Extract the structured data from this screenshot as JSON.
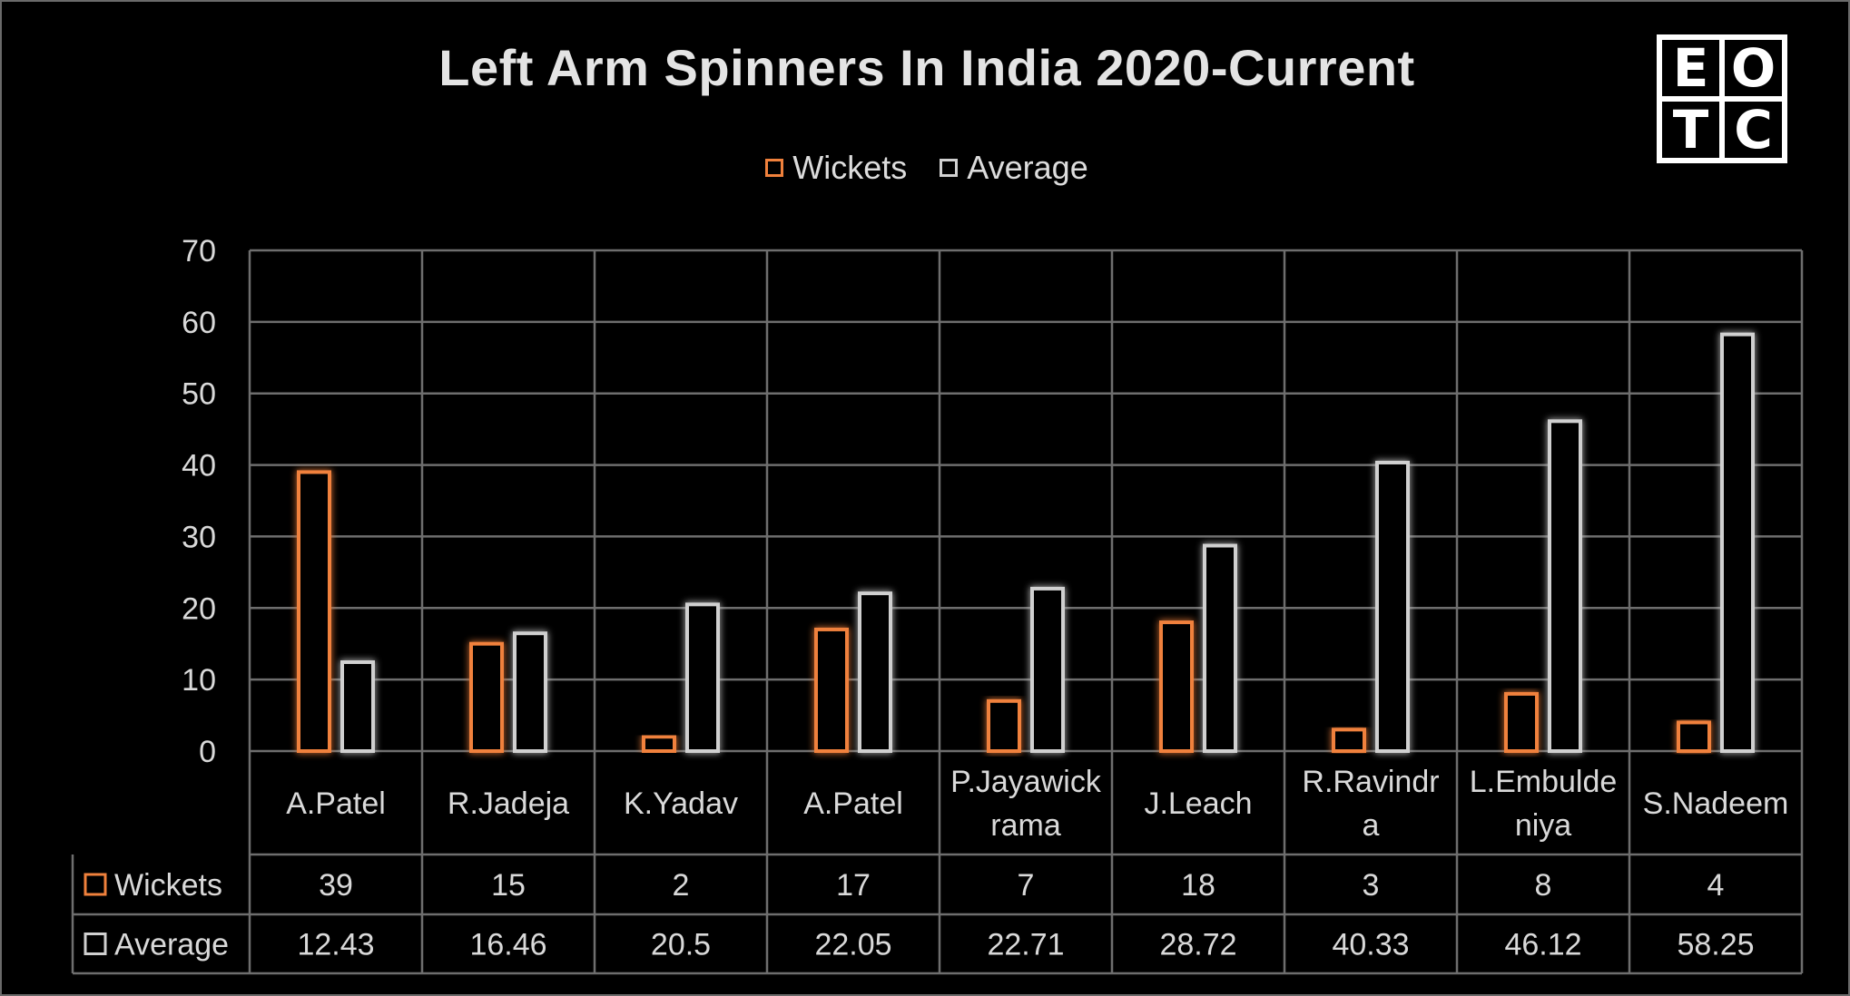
{
  "title": "Left Arm Spinners In India 2020-Current",
  "logo": {
    "letters": [
      "E",
      "O",
      "T",
      "C"
    ]
  },
  "colors": {
    "wickets": "#f0813c",
    "average": "#d0d0d0",
    "grid": "#6e6e6e",
    "background": "#000000"
  },
  "legend": [
    {
      "name": "Wickets",
      "color": "#f0813c"
    },
    {
      "name": "Average",
      "color": "#d0d0d0"
    }
  ],
  "chart_data": {
    "type": "bar",
    "title": "Left Arm Spinners In India 2020-Current",
    "categories": [
      [
        "A.Patel"
      ],
      [
        "R.Jadeja"
      ],
      [
        "K.Yadav"
      ],
      [
        "A.Patel"
      ],
      [
        "P.Jayawick",
        "rama"
      ],
      [
        "J.Leach"
      ],
      [
        "R.Ravindr",
        "a"
      ],
      [
        "L.Embulde",
        "niya"
      ],
      [
        "S.Nadeem"
      ]
    ],
    "series": [
      {
        "name": "Wickets",
        "values": [
          39,
          15,
          2,
          17,
          7,
          18,
          3,
          8,
          4
        ],
        "labels": [
          "39",
          "15",
          "2",
          "17",
          "7",
          "18",
          "3",
          "8",
          "4"
        ]
      },
      {
        "name": "Average",
        "values": [
          12.43,
          16.46,
          20.5,
          22.05,
          22.71,
          28.72,
          40.33,
          46.12,
          58.25
        ],
        "labels": [
          "12.43",
          "16.46",
          "20.5",
          "22.05",
          "22.71",
          "28.72",
          "40.33",
          "46.12",
          "58.25"
        ]
      }
    ],
    "ylim": [
      0,
      70
    ],
    "yticks": [
      "0",
      "10",
      "20",
      "30",
      "40",
      "50",
      "60",
      "70"
    ],
    "grid": true,
    "legend_position": "top-center",
    "data_table": true
  }
}
